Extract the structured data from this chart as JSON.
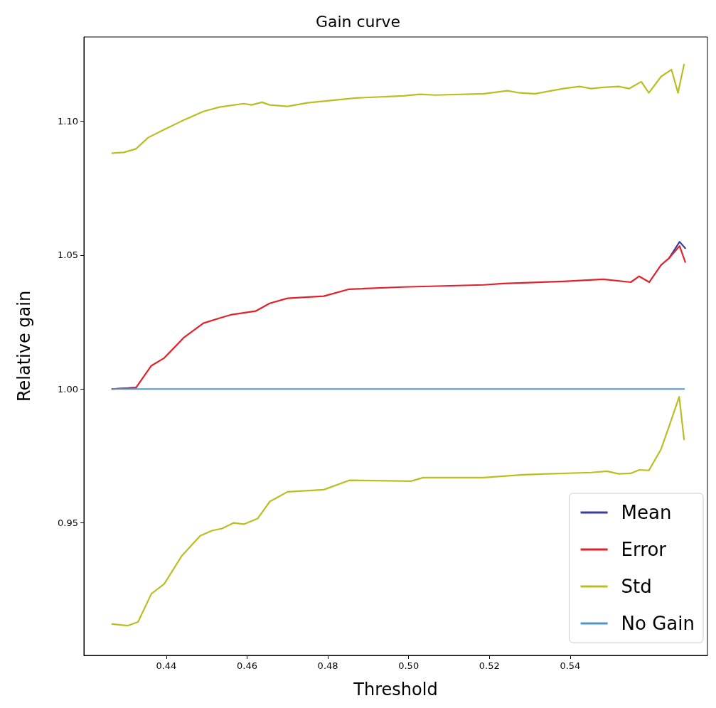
{
  "chart_data": {
    "type": "line",
    "title": "Gain curve",
    "xlabel": "Threshold",
    "ylabel": "Relative gain",
    "xlim": [
      0.4196,
      0.574
    ],
    "ylim": [
      0.9005,
      1.1315
    ],
    "xticks": [
      0.44,
      0.46,
      0.48,
      {
        "value": 0.5,
        "label": "0.50"
      },
      0.52,
      0.54
    ],
    "yticks": [
      0.95,
      {
        "value": 1,
        "label": "1.00"
      },
      1.05,
      {
        "value": 1.1,
        "label": "1.10"
      }
    ],
    "grid": false,
    "legend": "bottom right",
    "marker": "none",
    "line_style": "solid",
    "series": [
      {
        "name": "Mean",
        "color": "#3b3b9c",
        "x": [
          0.4266,
          0.4325,
          0.4363,
          0.4395,
          0.4444,
          0.4492,
          0.4532,
          0.4562,
          0.4621,
          0.4656,
          0.47,
          0.479,
          0.4853,
          0.4987,
          0.5186,
          0.5234,
          0.5383,
          0.5482,
          0.555,
          0.5571,
          0.5596,
          0.5625,
          0.5645,
          0.5671,
          0.5685
        ],
        "values": [
          1.0,
          1.0005,
          null,
          null,
          null,
          null,
          null,
          null,
          null,
          null,
          null,
          null,
          null,
          null,
          null,
          null,
          null,
          null,
          null,
          null,
          null,
          null,
          1.0489,
          1.055,
          1.0526
        ]
      },
      {
        "name": "Error",
        "color": "#e0202a",
        "x": [
          0.4266,
          0.4325,
          0.4363,
          0.4395,
          0.4444,
          0.4492,
          0.4532,
          0.4562,
          0.4621,
          0.4656,
          0.47,
          0.479,
          0.4853,
          0.4987,
          0.5186,
          0.5234,
          0.5383,
          0.5482,
          0.555,
          0.5571,
          0.5596,
          0.5625,
          0.5645,
          0.5671,
          0.5685
        ],
        "values": [
          1.0,
          1.0005,
          1.0087,
          1.0116,
          1.0193,
          1.0246,
          1.0265,
          1.0278,
          1.0291,
          1.032,
          1.0339,
          1.0347,
          1.0373,
          1.0381,
          1.0389,
          1.0394,
          1.0402,
          1.041,
          1.0399,
          1.0421,
          1.0399,
          1.0463,
          1.0489,
          1.0534,
          1.0474
        ]
      },
      {
        "name": "Std",
        "color": "#bcbd22",
        "x": [
          0.4266,
          0.4295,
          0.4325,
          0.4355,
          0.4393,
          0.4444,
          0.4492,
          0.4532,
          0.4592,
          0.4611,
          0.4637,
          0.4656,
          0.47,
          0.475,
          0.4869,
          0.4987,
          0.5027,
          0.5066,
          0.5186,
          0.5245,
          0.5275,
          0.5313,
          0.5383,
          0.5423,
          0.5452,
          0.5482,
          0.552,
          0.5546,
          0.5576,
          0.5595,
          0.5625,
          0.5651,
          0.5667,
          0.5682
        ],
        "values": [
          1.0881,
          1.0884,
          1.0897,
          1.0939,
          1.0968,
          1.1005,
          1.1037,
          1.1053,
          1.1066,
          1.1061,
          1.1071,
          1.1061,
          1.1056,
          1.1069,
          1.1087,
          1.1095,
          1.1101,
          1.1098,
          1.1103,
          1.1114,
          1.1106,
          1.1103,
          1.1122,
          1.113,
          1.1122,
          1.1127,
          1.113,
          1.1122,
          1.1148,
          1.1106,
          1.1167,
          1.1193,
          1.1106,
          1.1212
        ]
      },
      {
        "color": "#bcbd22",
        "x": [
          0.4266,
          0.4304,
          0.433,
          0.4363,
          0.4395,
          0.4438,
          0.4484,
          0.4513,
          0.4538,
          0.4567,
          0.4592,
          0.4626,
          0.4656,
          0.47,
          0.479,
          0.4853,
          0.5006,
          0.5036,
          0.5186,
          0.5283,
          0.5452,
          0.5491,
          0.552,
          0.555,
          0.5571,
          0.5595,
          0.5625,
          0.5646,
          0.567,
          0.5682
        ],
        "values": [
          0.9122,
          0.9116,
          0.913,
          0.9235,
          0.9272,
          0.9376,
          0.9452,
          0.9471,
          0.9479,
          0.95,
          0.9495,
          0.9516,
          0.9579,
          0.9616,
          0.9624,
          0.9659,
          0.9656,
          0.9669,
          0.9669,
          0.968,
          0.9688,
          0.9693,
          0.9683,
          0.9685,
          0.9698,
          0.9696,
          0.9775,
          0.9865,
          0.9971,
          0.9812
        ]
      },
      {
        "name": "No Gain",
        "color": "#4f93c9",
        "x": [
          0.4266,
          0.5682
        ],
        "values": [
          1.0,
          1.0
        ]
      }
    ]
  }
}
